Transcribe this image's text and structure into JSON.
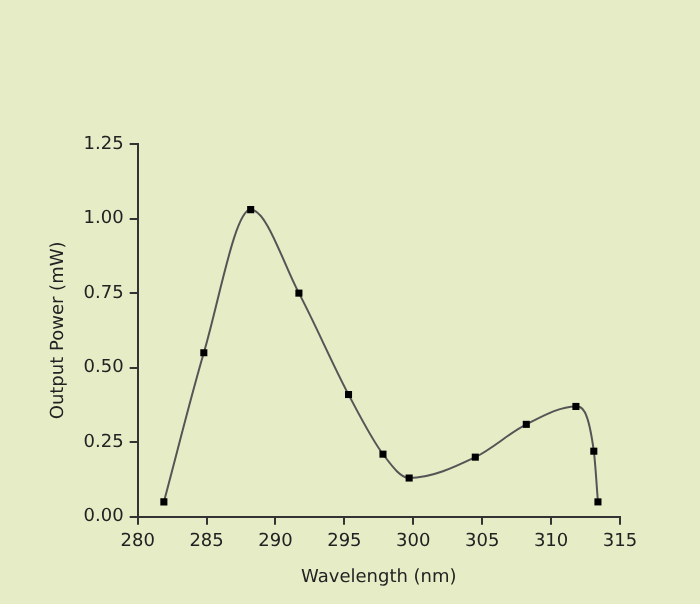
{
  "chart_data": {
    "type": "line",
    "xlabel": "Wavelength (nm)",
    "ylabel": "Output Power (mW)",
    "x": [
      281.9,
      284.8,
      288.2,
      291.7,
      295.3,
      297.8,
      299.7,
      304.5,
      308.2,
      311.8,
      313.1,
      313.4
    ],
    "series": [
      {
        "color": "#555555",
        "values": [
          0.05,
          0.55,
          1.03,
          0.75,
          0.41,
          0.21,
          0.13,
          0.2,
          0.31,
          0.37,
          0.22,
          0.05
        ]
      }
    ],
    "xlim": [
      280,
      315
    ],
    "xticks": [
      280,
      285,
      290,
      295,
      300,
      305,
      310,
      315
    ],
    "ylim": [
      0,
      1.25
    ],
    "yticks": [
      {
        "value": 0,
        "label": "0.00"
      },
      {
        "value": 0.25,
        "label": "0.25"
      },
      {
        "value": 0.5,
        "label": "0.50"
      },
      {
        "value": 0.75,
        "label": "0.75"
      },
      {
        "value": 1,
        "label": "1.00"
      },
      {
        "value": 1.25,
        "label": "1.25"
      }
    ],
    "grid": false,
    "legend": false,
    "marker": "square",
    "line_style": "solid"
  }
}
